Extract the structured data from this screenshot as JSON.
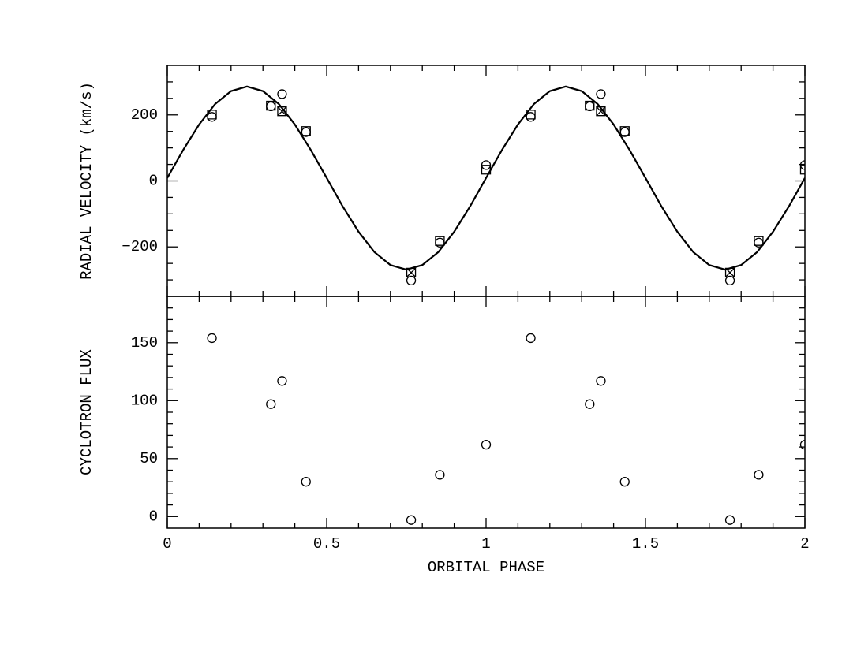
{
  "chart_data": [
    {
      "type": "scatter",
      "ylabel": "RADIAL VELOCITY (km/s)",
      "xlim": [
        0,
        2
      ],
      "xticks": [
        0,
        0.5,
        1,
        1.5,
        2
      ],
      "xtick_labels": false,
      "xminorticks": [
        0.1,
        0.2,
        0.3,
        0.4,
        0.6,
        0.7,
        0.8,
        0.9,
        1.1,
        1.2,
        1.3,
        1.4,
        1.6,
        1.7,
        1.8,
        1.9
      ],
      "ylim": [
        -350,
        350
      ],
      "yticks": [
        {
          "value": -200,
          "label": "−200"
        },
        0,
        200
      ],
      "yminorticks": [
        -300,
        -250,
        -150,
        -100,
        -50,
        50,
        100,
        150,
        250,
        300
      ],
      "series": [
        {
          "type": "line",
          "color": "#000000",
          "x": [
            0,
            0.05,
            0.1,
            0.15,
            0.2,
            0.25,
            0.3,
            0.35,
            0.4,
            0.45,
            0.5,
            0.55,
            0.6,
            0.65,
            0.7,
            0.75,
            0.8,
            0.85,
            0.9,
            0.95,
            1,
            1.05,
            1.1,
            1.15,
            1.2,
            1.25,
            1.3,
            1.35,
            1.4,
            1.45,
            1.5,
            1.55,
            1.6,
            1.65,
            1.7,
            1.75,
            1.8,
            1.85,
            1.9,
            1.95,
            2
          ],
          "values": [
            9,
            94,
            171,
            233,
            272,
            286,
            272,
            233,
            171,
            94,
            9,
            -77,
            -154,
            -216,
            -255,
            -269,
            -255,
            -216,
            -154,
            -77,
            9,
            94,
            171,
            233,
            272,
            286,
            272,
            233,
            171,
            94,
            9,
            -77,
            -154,
            -216,
            -255,
            -269,
            -255,
            -216,
            -154,
            -77,
            9
          ]
        },
        {
          "type": "scatter",
          "marker": "circle",
          "color": "#000000",
          "x": [
            0.14,
            0.325,
            0.36,
            0.435,
            0.765,
            0.855,
            1.0,
            1.14,
            1.325,
            1.36,
            1.435,
            1.765,
            1.855,
            2.0
          ],
          "values": [
            194,
            226,
            263,
            148,
            -302,
            -187,
            48,
            194,
            226,
            263,
            148,
            -302,
            -187,
            48
          ]
        },
        {
          "type": "scatter",
          "marker": "square",
          "color": "#000000",
          "x": [
            0.14,
            0.325,
            0.435,
            0.855,
            1.0,
            1.14,
            1.325,
            1.435,
            1.855,
            2.0
          ],
          "values": [
            201,
            228,
            151,
            -182,
            34,
            201,
            228,
            151,
            -182,
            34
          ]
        },
        {
          "type": "scatter",
          "marker": "crossed-square",
          "color": "#000000",
          "x": [
            0.36,
            0.765,
            1.36,
            1.765
          ],
          "values": [
            211,
            -278,
            211,
            -278
          ]
        }
      ]
    },
    {
      "type": "scatter",
      "ylabel": "CYCLOTRON FLUX",
      "xlabel": "ORBITAL PHASE",
      "xlim": [
        0,
        2
      ],
      "xticks": [
        0,
        0.5,
        1,
        1.5,
        2
      ],
      "xtick_labels": true,
      "xminorticks": [
        0.1,
        0.2,
        0.3,
        0.4,
        0.6,
        0.7,
        0.8,
        0.9,
        1.1,
        1.2,
        1.3,
        1.4,
        1.6,
        1.7,
        1.8,
        1.9
      ],
      "ylim": [
        -10,
        190
      ],
      "yticks": [
        0,
        50,
        100,
        150
      ],
      "yminorticks": [
        10,
        20,
        30,
        40,
        60,
        70,
        80,
        90,
        110,
        120,
        130,
        140,
        160,
        170,
        180
      ],
      "series": [
        {
          "type": "scatter",
          "marker": "circle",
          "color": "#000000",
          "x": [
            0.14,
            0.325,
            0.36,
            0.435,
            0.765,
            0.855,
            1.0,
            1.14,
            1.325,
            1.36,
            1.435,
            1.765,
            1.855,
            2.0
          ],
          "values": [
            154,
            97,
            117,
            30,
            -3,
            36,
            62,
            154,
            97,
            117,
            30,
            -3,
            36,
            62
          ]
        }
      ]
    }
  ]
}
